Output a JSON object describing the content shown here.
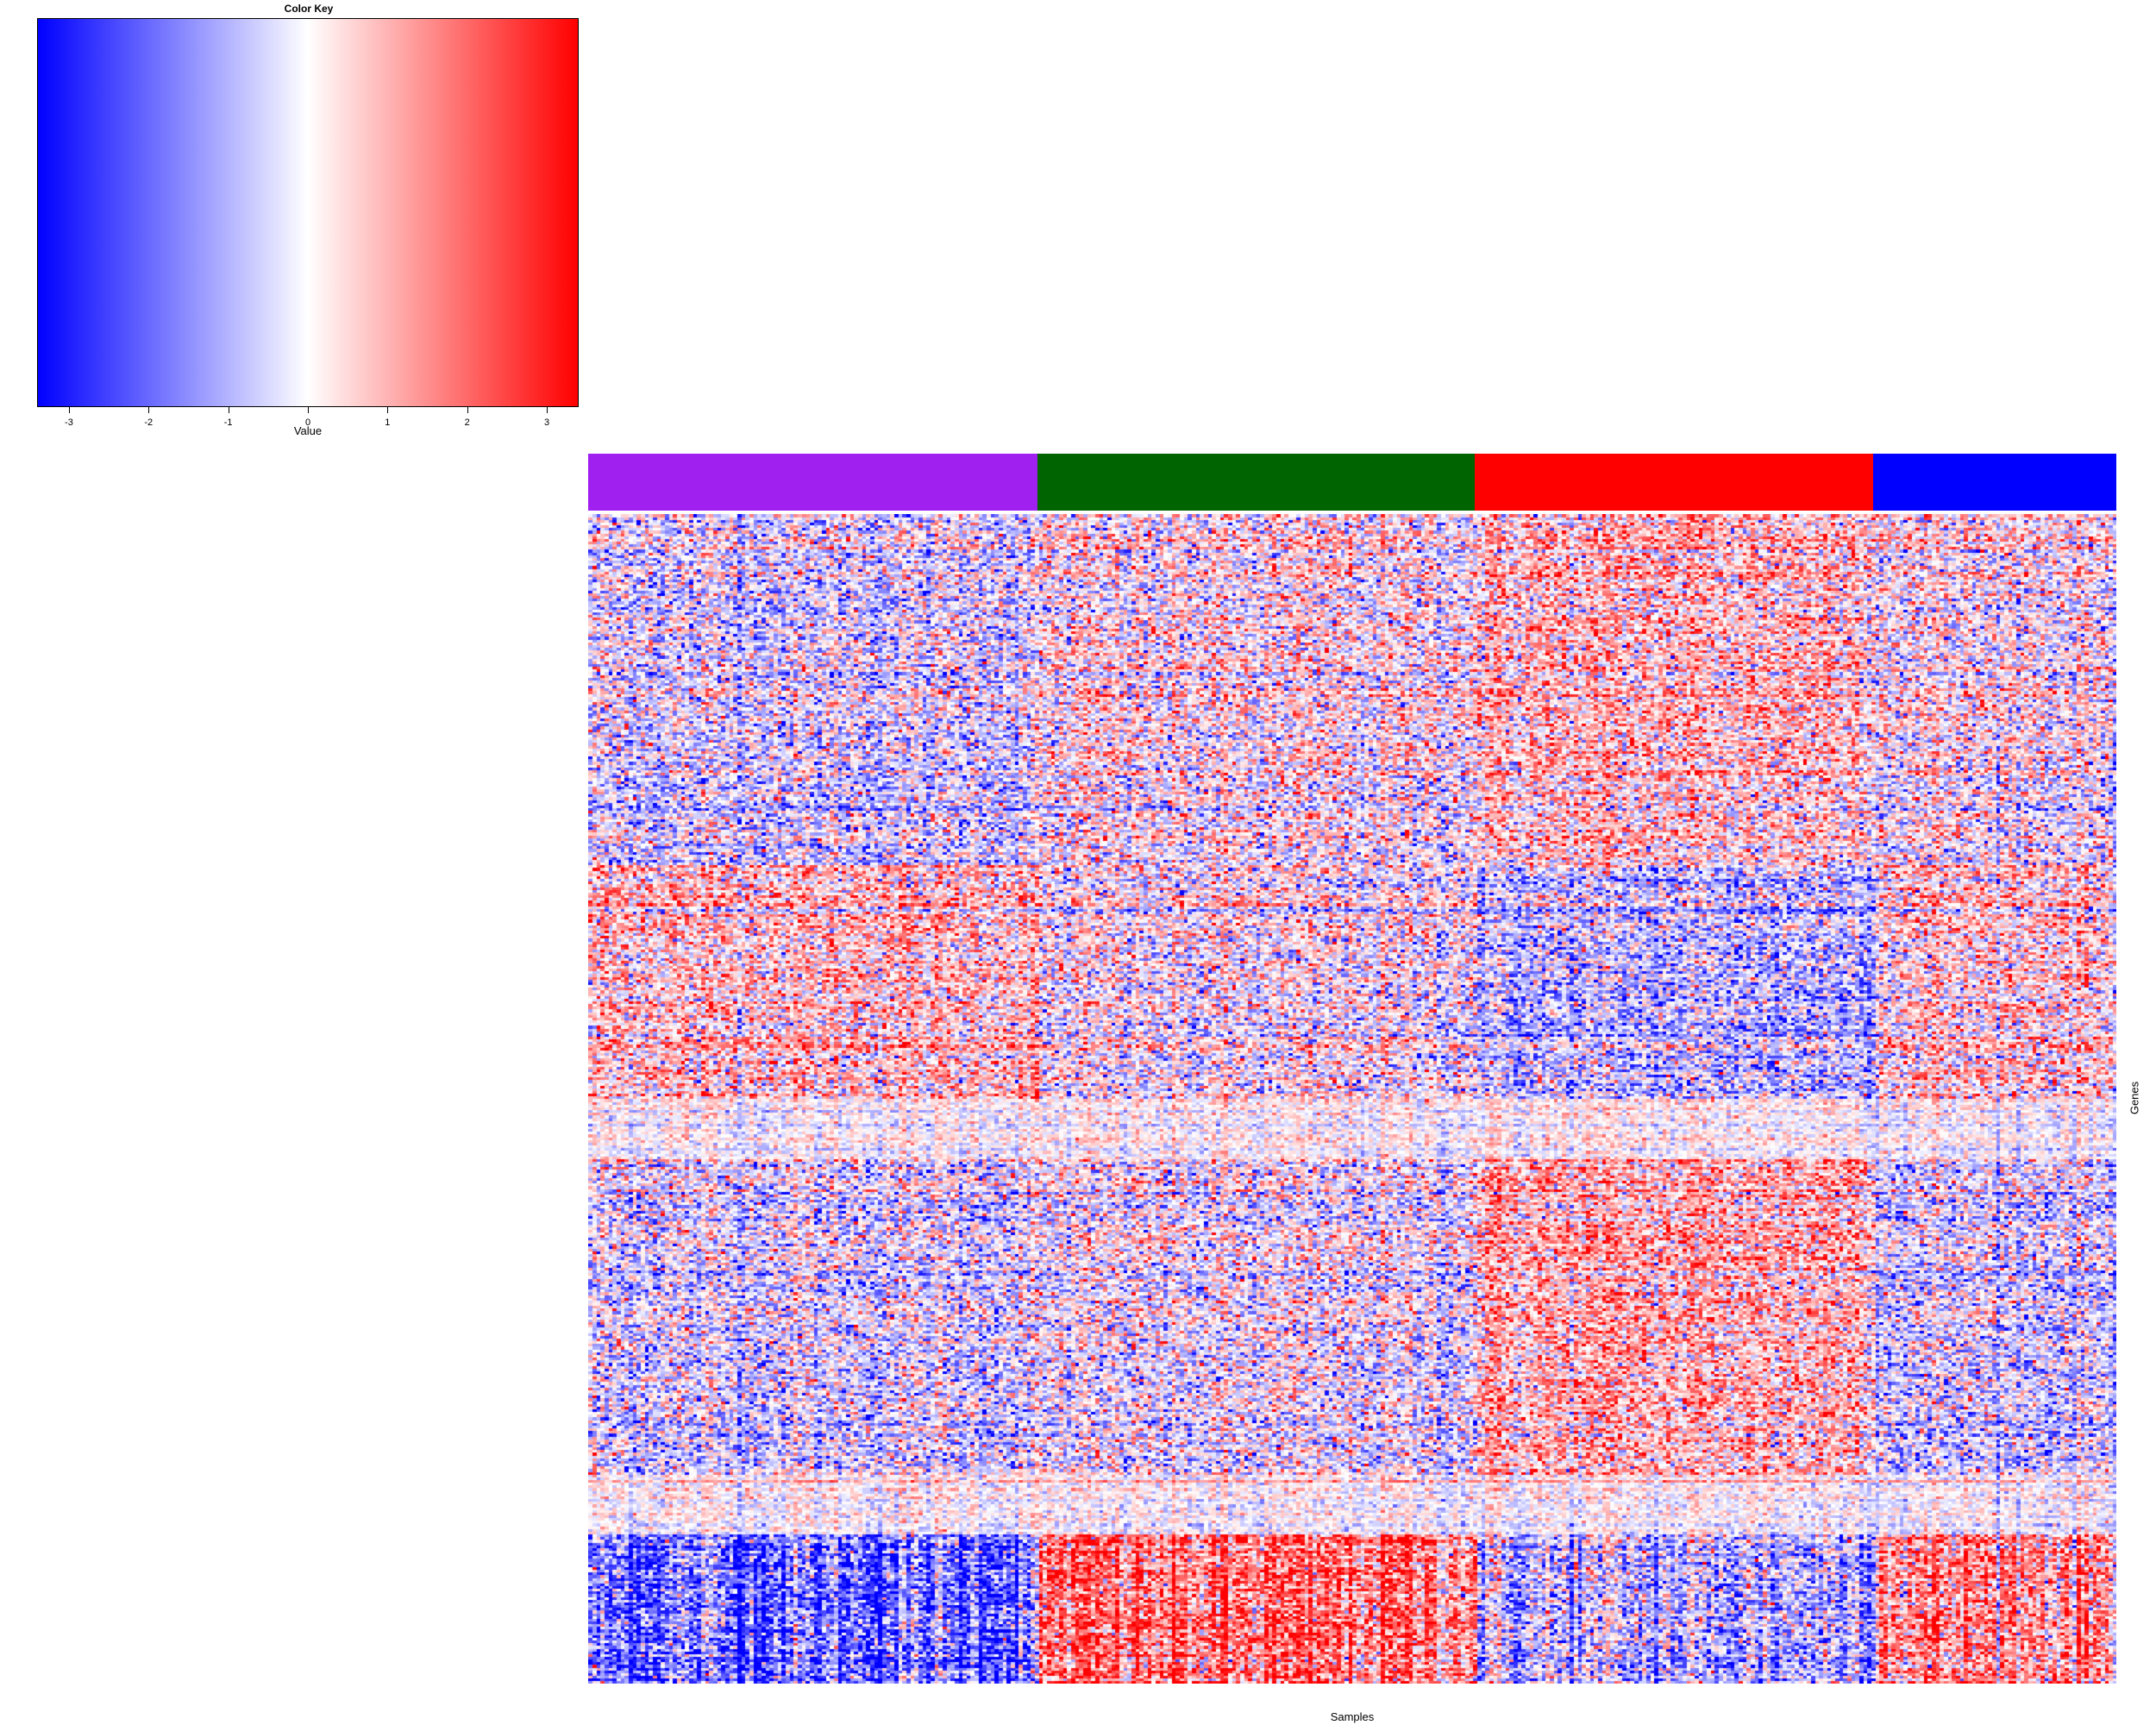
{
  "chart_data": {
    "type": "heatmap",
    "color_key": {
      "title": "Color Key",
      "xlabel": "Value",
      "range": [
        -3.4,
        3.4
      ],
      "ticks": [
        "-3",
        "-2",
        "-1",
        "0",
        "1",
        "2",
        "3"
      ],
      "colors": [
        "#0000ff",
        "#ffffff",
        "#ff0000"
      ]
    },
    "xlabel": "Samples",
    "ylabel": "Genes",
    "column_groups": [
      {
        "color": "#a020f0",
        "fraction": 0.294
      },
      {
        "color": "#006400",
        "fraction": 0.286
      },
      {
        "color": "#ff0000",
        "fraction": 0.261
      },
      {
        "color": "#0000ff",
        "fraction": 0.159
      }
    ],
    "matrix_summary": {
      "rows": 430,
      "columns": 380,
      "value_range": [
        -3.4,
        3.4
      ],
      "row_blocks": [
        {
          "size": 0.3,
          "group_means": [
            -0.4,
            0.1,
            0.7,
            0.1
          ]
        },
        {
          "size": 0.2,
          "group_means": [
            0.7,
            0.0,
            -0.8,
            0.5
          ]
        },
        {
          "size": 0.05,
          "group_means": [
            0.0,
            0.0,
            0.1,
            0.0
          ]
        },
        {
          "size": 0.27,
          "group_means": [
            -0.4,
            -0.2,
            0.9,
            -0.5
          ]
        },
        {
          "size": 0.05,
          "group_means": [
            0.1,
            0.0,
            0.1,
            0.0
          ]
        },
        {
          "size": 0.13,
          "group_means": [
            -2.0,
            1.6,
            -1.0,
            1.3
          ]
        }
      ]
    }
  }
}
